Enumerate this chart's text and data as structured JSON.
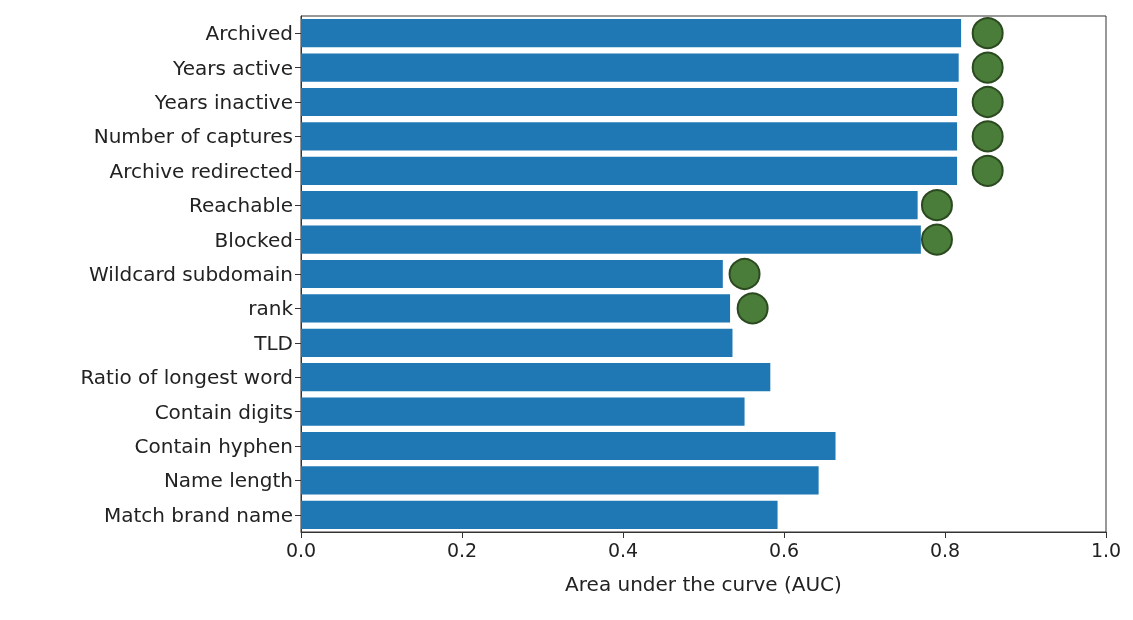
{
  "chart_data": {
    "type": "bar",
    "orientation": "horizontal",
    "xlabel": "Area under the curve (AUC)",
    "categories": [
      "Archived",
      "Years active",
      "Years inactive",
      "Number of captures",
      "Archive redirected",
      "Reachable",
      "Blocked",
      "Wildcard subdomain",
      "rank",
      "TLD",
      "Ratio of longest word",
      "Contain digits",
      "Contain hyphen",
      "Name length",
      "Match brand name"
    ],
    "series": [
      {
        "color": "#1f77b4",
        "values": [
          0.82,
          0.817,
          0.815,
          0.815,
          0.815,
          0.766,
          0.77,
          0.524,
          0.533,
          0.536,
          0.583,
          0.551,
          0.664,
          0.643,
          0.592
        ]
      },
      {
        "type": "scatter",
        "color": "#4b7d3a",
        "marker": "circle",
        "values": [
          0.853,
          0.853,
          0.853,
          0.853,
          0.853,
          0.79,
          0.79,
          0.551,
          0.561,
          null,
          null,
          null,
          null,
          null,
          null
        ]
      }
    ],
    "xlim": [
      0,
      1
    ],
    "xticks": [
      {
        "value": 0,
        "label": "0.0"
      },
      {
        "value": 0.2,
        "label": "0.2"
      },
      {
        "value": 0.4,
        "label": "0.4"
      },
      {
        "value": 0.6,
        "label": "0.6"
      },
      {
        "value": 0.8,
        "label": "0.8"
      },
      {
        "value": 1,
        "label": "1.0"
      }
    ],
    "grid": false
  }
}
